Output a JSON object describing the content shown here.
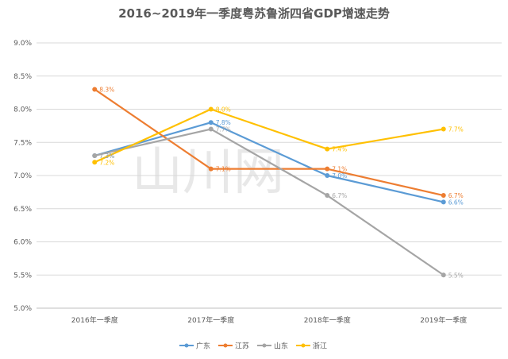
{
  "chart_data": {
    "type": "line",
    "title": "2016~2019年一季度粤苏鲁浙四省GDP增速走势",
    "xlabel": "",
    "ylabel": "",
    "categories": [
      "2016年一季度",
      "2017年一季度",
      "2018年一季度",
      "2019年一季度"
    ],
    "ylim": [
      5.0,
      9.0
    ],
    "yticks": [
      "5.0%",
      "5.5%",
      "6.0%",
      "6.5%",
      "7.0%",
      "7.5%",
      "8.0%",
      "8.5%",
      "9.0%"
    ],
    "grid": true,
    "legend_position": "bottom",
    "series": [
      {
        "name": "广东",
        "color": "#5b9bd5",
        "values": [
          7.3,
          7.8,
          7.0,
          6.6
        ],
        "labels": [
          "7.3%",
          "7.8%",
          "7.0%",
          "6.6%"
        ]
      },
      {
        "name": "江苏",
        "color": "#ed7d31",
        "values": [
          8.3,
          7.1,
          7.1,
          6.7
        ],
        "labels": [
          "8.3%",
          "7.1%",
          "7.1%",
          "6.7%"
        ]
      },
      {
        "name": "山东",
        "color": "#a5a5a5",
        "values": [
          7.3,
          7.7,
          6.7,
          5.5
        ],
        "labels": [
          "7.3%",
          "7.7%",
          "6.7%",
          "5.5%"
        ]
      },
      {
        "name": "浙江",
        "color": "#ffc000",
        "values": [
          7.2,
          8.0,
          7.4,
          7.7
        ],
        "labels": [
          "7.2%",
          "8.0%",
          "7.4%",
          "7.7%"
        ]
      }
    ]
  }
}
